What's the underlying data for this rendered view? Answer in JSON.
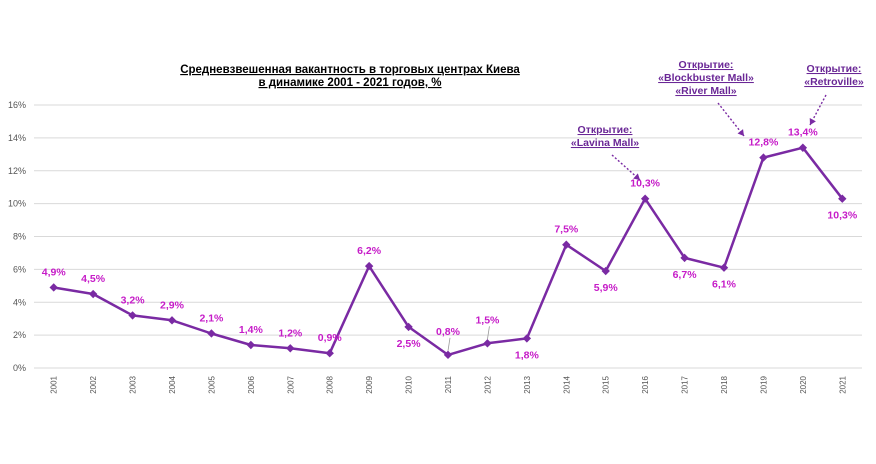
{
  "chart_data": {
    "type": "line",
    "title_lines": [
      "Средневзвешенная вакантность в торговых центрах Киева",
      "в динамике 2001 - 2021 годов, %"
    ],
    "x": [
      "2001",
      "2002",
      "2003",
      "2004",
      "2005",
      "2006",
      "2007",
      "2008",
      "2009",
      "2010",
      "2011",
      "2012",
      "2013",
      "2014",
      "2015",
      "2016",
      "2017",
      "2018",
      "2019",
      "2020",
      "2021"
    ],
    "values": [
      4.9,
      4.5,
      3.2,
      2.9,
      2.1,
      1.4,
      1.2,
      0.9,
      6.2,
      2.5,
      0.8,
      1.5,
      1.8,
      7.5,
      5.9,
      10.3,
      6.7,
      6.1,
      12.8,
      13.4,
      10.3
    ],
    "data_labels": [
      "4,9%",
      "4,5%",
      "3,2%",
      "2,9%",
      "2,1%",
      "1,4%",
      "1,2%",
      "0,9%",
      "6,2%",
      "2,5%",
      "0,8%",
      "1,5%",
      "1,8%",
      "7,5%",
      "5,9%",
      "10,3%",
      "6,7%",
      "6,1%",
      "12,8%",
      "13,4%",
      "10,3%"
    ],
    "label_position": [
      "above",
      "above",
      "above",
      "above",
      "above",
      "above",
      "above",
      "above",
      "above",
      "below",
      "above",
      "above",
      "below",
      "above",
      "below",
      "above",
      "below",
      "below",
      "above",
      "above",
      "below"
    ],
    "y_ticks": [
      0,
      2,
      4,
      6,
      8,
      10,
      12,
      14,
      16
    ],
    "y_tick_labels": [
      "0%",
      "2%",
      "4%",
      "6%",
      "8%",
      "10%",
      "12%",
      "14%",
      "16%"
    ],
    "ylim": [
      0,
      16
    ],
    "grid": true,
    "colors": {
      "line": "#7a2aa3",
      "label": "#c61cc8",
      "annotation": "#6a2796"
    },
    "annotations": [
      {
        "target_year": "2016",
        "lines": [
          "Открытие:",
          "«Lavina Mall»"
        ]
      },
      {
        "target_year": "2019",
        "lines": [
          "Открытие:",
          "«Blockbuster Mall»",
          "«River Mall»"
        ]
      },
      {
        "target_year": "2020",
        "lines": [
          "Открытие:",
          "«Retroville»"
        ]
      }
    ]
  }
}
